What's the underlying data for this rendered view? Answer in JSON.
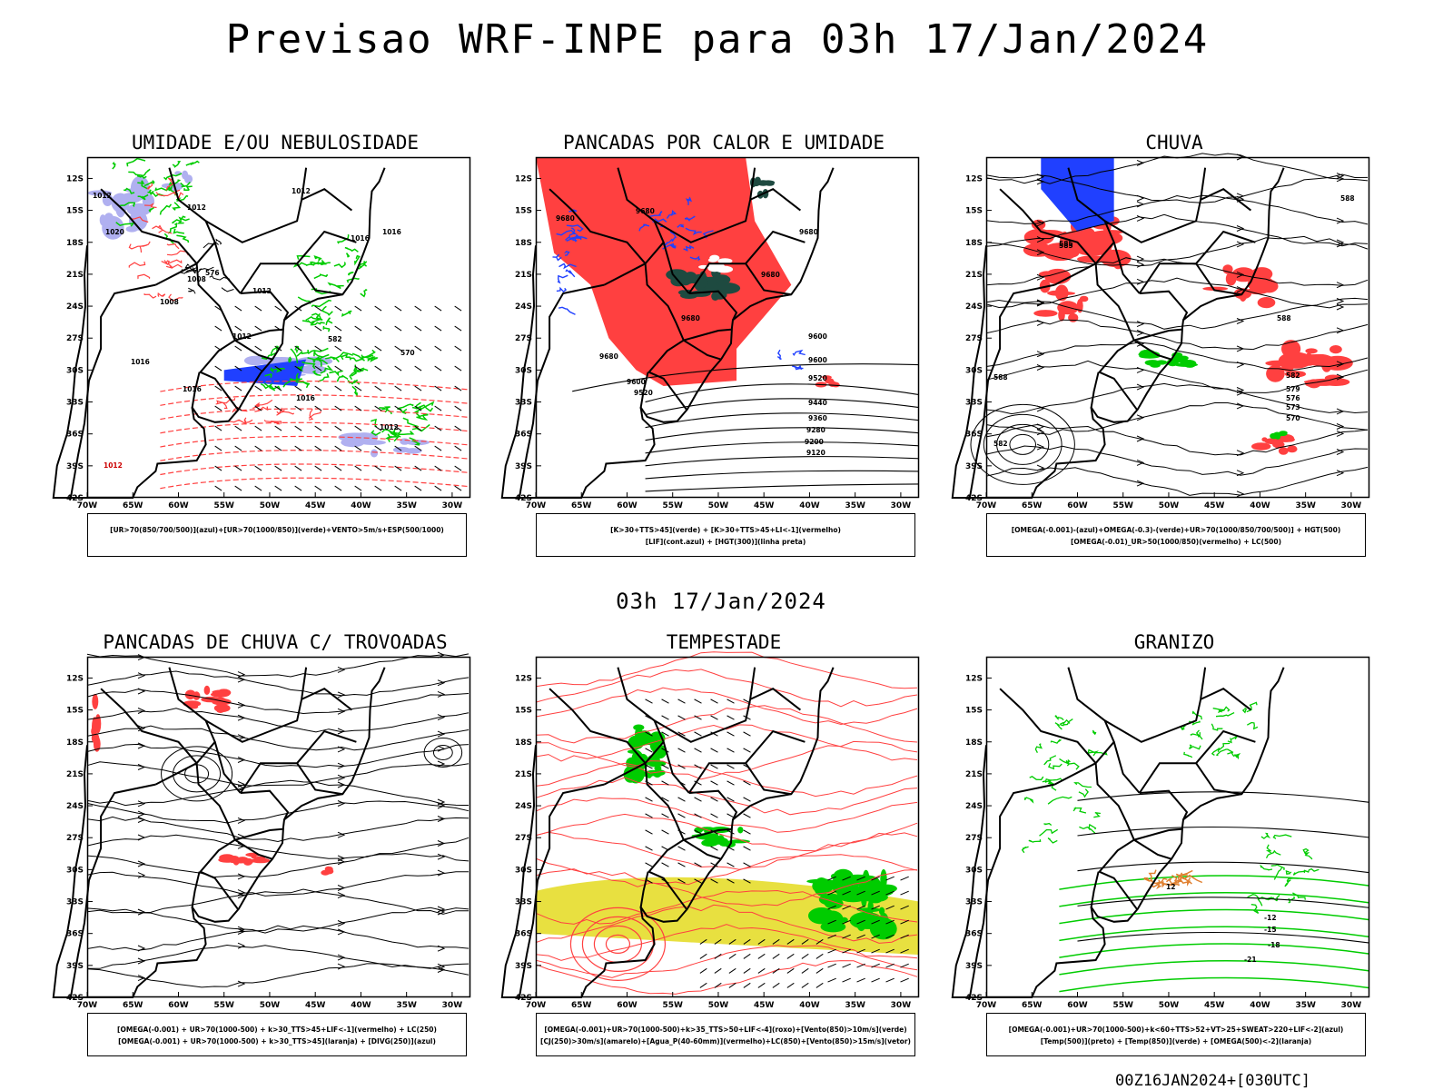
{
  "title": "Previsao WRF-INPE  para 03h 17/Jan/2024",
  "mid_time": "03h 17/Jan/2024",
  "footer": "00Z16JAN2024+[030UTC]",
  "axes": {
    "lat_labels": [
      "12S",
      "15S",
      "18S",
      "21S",
      "24S",
      "27S",
      "30S",
      "33S",
      "36S",
      "39S",
      "42S"
    ],
    "lon_labels": [
      "70W",
      "65W",
      "60W",
      "55W",
      "50W",
      "45W",
      "40W",
      "35W",
      "30W"
    ]
  },
  "colors": {
    "red": "#ff4040",
    "green": "#00cc00",
    "blue": "#2040ff",
    "lilac": "#b0b0f0",
    "yellow": "#e8e040",
    "darkgreen": "#1e4a40",
    "orange": "#e08030"
  },
  "panels": [
    {
      "title": "UMIDADE E/OU NEBULOSIDADE",
      "legend": [
        "[UR>70(850/700/500)](azul)+[UR>70(1000/850)](verde)+VENTO>5m/s+ESP(500/1000)"
      ],
      "labels": [
        "1012",
        "1012",
        "1012",
        "1016",
        "1016",
        "1012",
        "1008",
        "1012",
        "1016",
        "1016",
        "1012",
        "1008",
        "576",
        "582",
        "570",
        "1020",
        "1016",
        "1012"
      ]
    },
    {
      "title": "PANCADAS POR CALOR E UMIDADE",
      "legend": [
        "[K>30+TTS>45](verde) + [K>30+TTS>45+LI<-1](vermelho)",
        "[LIF](cont.azul) + [HGT(300)](linha preta)"
      ],
      "labels": [
        "9680",
        "9680",
        "9680",
        "9680",
        "9680",
        "9600",
        "9520",
        "9600",
        "9520",
        "9440",
        "9360",
        "9280",
        "9200",
        "9120",
        "9680",
        "9600"
      ]
    },
    {
      "title": "CHUVA",
      "legend": [
        "[OMEGA(-0.001)-(azul)+OMEGA(-0.3)-(verde)+UR>70(1000/850/700/500)] + HGT(500)",
        "[OMEGA(-0.01)_UR>50(1000/850)(vermelho) + LC(500)"
      ],
      "labels": [
        "588",
        "588",
        "585",
        "582",
        "579",
        "576",
        "573",
        "570",
        "582",
        "588",
        "585"
      ]
    },
    {
      "title": "PANCADAS DE CHUVA C/ TROVOADAS",
      "legend": [
        "[OMEGA(-0.001) + UR>70(1000-500) + k>30_TTS>45+LIF<-1](vermelho) + LC(250)",
        "[OMEGA(-0.001) + UR>70(1000-500) + k>30_TTS>45](laranja) + [DIVG(250)](azul)"
      ],
      "labels": []
    },
    {
      "title": "TEMPESTADE",
      "legend": [
        "[OMEGA(-0.001)+UR>70(1000-500)+k>35_TTS>50+LIF<-4](roxo)+[Vento(850)>10m/s](verde)",
        "[CJ(250)>30m/s](amarelo)+[Agua_P(40-60mm)](vermelho)+LC(850)+[Vento(850)>15m/s](vetor)"
      ],
      "labels": []
    },
    {
      "title": "GRANIZO",
      "legend": [
        "[OMEGA(-0.001)+UR>70(1000-500)+k<60+TTS>52+VT>25+SWEAT>220+LIF<-2](azul)",
        "[Temp(500)](preto) + [Temp(850)](verde) + [OMEGA(500)<-2](laranja)"
      ],
      "labels": [
        "-12",
        "-15",
        "-18",
        "-21",
        "12"
      ]
    }
  ]
}
